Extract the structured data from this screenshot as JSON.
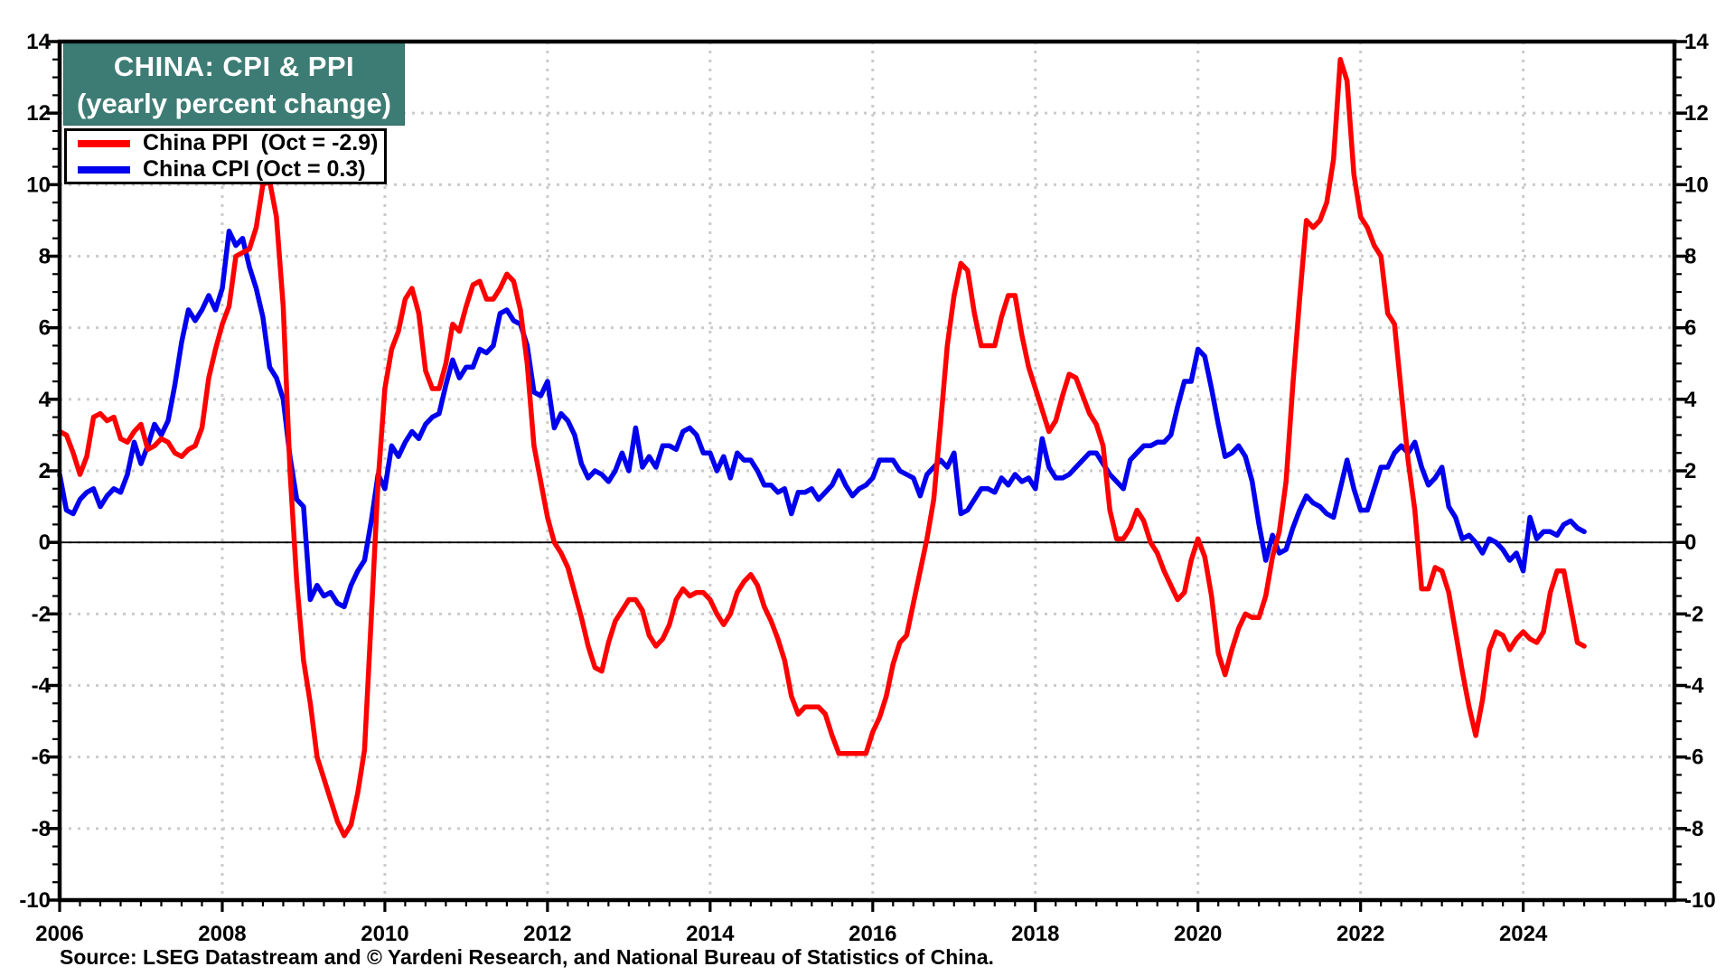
{
  "title": {
    "line1": "CHINA: CPI & PPI",
    "line2": "(yearly percent change)"
  },
  "legend": [
    {
      "label": "China PPI  (Oct = -2.9)",
      "color": "#FF0000"
    },
    {
      "label": "China CPI (Oct = 0.3)",
      "color": "#0000EE"
    }
  ],
  "source": "Source: LSEG Datastream and © Yardeni Research, and National Bureau of Statistics of China.",
  "colors": {
    "title_bg": "#3D7C74",
    "title_text": "#FFFFFF",
    "ppi_line": "#FF0000",
    "cpi_line": "#0000EE",
    "gridline": "#CBCBCB",
    "axis": "#000000"
  },
  "chart_data": {
    "type": "line",
    "title": "CHINA: CPI & PPI (yearly percent change)",
    "xlabel": "",
    "ylabel": "yearly percent change",
    "x_monthly_from": "2006-01",
    "x_monthly_to": "2024-10",
    "xlim": [
      2006,
      2025.86
    ],
    "ylim": [
      -10,
      14
    ],
    "xticks": [
      2006,
      2008,
      2010,
      2012,
      2014,
      2016,
      2018,
      2020,
      2022,
      2024
    ],
    "yticks": [
      14,
      12,
      10,
      8,
      6,
      4,
      2,
      0,
      -2,
      -4,
      -6,
      -8,
      -10
    ],
    "y_minor_step": 0.5,
    "x_minor_step": 0.25,
    "grid": "dotted",
    "legend_position": "top-left",
    "series": [
      {
        "name": "China PPI",
        "latest_label": "Oct = -2.9",
        "color": "#FF0000",
        "values": [
          3.1,
          3.0,
          2.5,
          1.9,
          2.4,
          3.5,
          3.6,
          3.4,
          3.5,
          2.9,
          2.8,
          3.1,
          3.3,
          2.6,
          2.7,
          2.9,
          2.8,
          2.5,
          2.4,
          2.6,
          2.7,
          3.2,
          4.6,
          5.4,
          6.1,
          6.6,
          8.0,
          8.1,
          8.2,
          8.8,
          10.0,
          10.1,
          9.1,
          6.6,
          2.0,
          -1.1,
          -3.3,
          -4.5,
          -6.0,
          -6.6,
          -7.2,
          -7.8,
          -8.2,
          -7.9,
          -7.0,
          -5.8,
          -2.1,
          1.7,
          4.3,
          5.4,
          5.9,
          6.8,
          7.1,
          6.4,
          4.8,
          4.3,
          4.3,
          5.0,
          6.1,
          5.9,
          6.6,
          7.2,
          7.3,
          6.8,
          6.8,
          7.1,
          7.5,
          7.3,
          6.5,
          5.0,
          2.7,
          1.7,
          0.7,
          0.0,
          -0.3,
          -0.7,
          -1.4,
          -2.1,
          -2.9,
          -3.5,
          -3.6,
          -2.8,
          -2.2,
          -1.9,
          -1.6,
          -1.6,
          -1.9,
          -2.6,
          -2.9,
          -2.7,
          -2.3,
          -1.6,
          -1.3,
          -1.5,
          -1.4,
          -1.4,
          -1.6,
          -2.0,
          -2.3,
          -2.0,
          -1.4,
          -1.1,
          -0.9,
          -1.2,
          -1.8,
          -2.2,
          -2.7,
          -3.3,
          -4.3,
          -4.8,
          -4.6,
          -4.6,
          -4.6,
          -4.8,
          -5.4,
          -5.9,
          -5.9,
          -5.9,
          -5.9,
          -5.9,
          -5.3,
          -4.9,
          -4.3,
          -3.4,
          -2.8,
          -2.6,
          -1.7,
          -0.8,
          0.1,
          1.2,
          3.3,
          5.5,
          6.9,
          7.8,
          7.6,
          6.4,
          5.5,
          5.5,
          5.5,
          6.3,
          6.9,
          6.9,
          5.8,
          4.9,
          4.3,
          3.7,
          3.1,
          3.4,
          4.1,
          4.7,
          4.6,
          4.1,
          3.6,
          3.3,
          2.7,
          0.9,
          0.1,
          0.1,
          0.4,
          0.9,
          0.6,
          0.0,
          -0.3,
          -0.8,
          -1.2,
          -1.6,
          -1.4,
          -0.5,
          0.1,
          -0.4,
          -1.5,
          -3.1,
          -3.7,
          -3.0,
          -2.4,
          -2.0,
          -2.1,
          -2.1,
          -1.5,
          -0.4,
          0.3,
          1.7,
          4.4,
          6.8,
          9.0,
          8.8,
          9.0,
          9.5,
          10.7,
          13.5,
          12.9,
          10.3,
          9.1,
          8.8,
          8.3,
          8.0,
          6.4,
          6.1,
          4.2,
          2.3,
          0.9,
          -1.3,
          -1.3,
          -0.7,
          -0.8,
          -1.4,
          -2.5,
          -3.6,
          -4.6,
          -5.4,
          -4.4,
          -3.0,
          -2.5,
          -2.6,
          -3.0,
          -2.7,
          -2.5,
          -2.7,
          -2.8,
          -2.5,
          -1.4,
          -0.8,
          -0.8,
          -1.8,
          -2.8,
          -2.9
        ]
      },
      {
        "name": "China CPI",
        "latest_label": "Oct = 0.3",
        "color": "#0000EE",
        "values": [
          1.9,
          0.9,
          0.8,
          1.2,
          1.4,
          1.5,
          1.0,
          1.3,
          1.5,
          1.4,
          1.9,
          2.8,
          2.2,
          2.7,
          3.3,
          3.0,
          3.4,
          4.4,
          5.6,
          6.5,
          6.2,
          6.5,
          6.9,
          6.5,
          7.1,
          8.7,
          8.3,
          8.5,
          7.7,
          7.1,
          6.3,
          4.9,
          4.6,
          4.0,
          2.4,
          1.2,
          1.0,
          -1.6,
          -1.2,
          -1.5,
          -1.4,
          -1.7,
          -1.8,
          -1.2,
          -0.8,
          -0.5,
          0.6,
          1.9,
          1.5,
          2.7,
          2.4,
          2.8,
          3.1,
          2.9,
          3.3,
          3.5,
          3.6,
          4.4,
          5.1,
          4.6,
          4.9,
          4.9,
          5.4,
          5.3,
          5.5,
          6.4,
          6.5,
          6.2,
          6.1,
          5.5,
          4.2,
          4.1,
          4.5,
          3.2,
          3.6,
          3.4,
          3.0,
          2.2,
          1.8,
          2.0,
          1.9,
          1.7,
          2.0,
          2.5,
          2.0,
          3.2,
          2.1,
          2.4,
          2.1,
          2.7,
          2.7,
          2.6,
          3.1,
          3.2,
          3.0,
          2.5,
          2.5,
          2.0,
          2.4,
          1.8,
          2.5,
          2.3,
          2.3,
          2.0,
          1.6,
          1.6,
          1.4,
          1.5,
          0.8,
          1.4,
          1.4,
          1.5,
          1.2,
          1.4,
          1.6,
          2.0,
          1.6,
          1.3,
          1.5,
          1.6,
          1.8,
          2.3,
          2.3,
          2.3,
          2.0,
          1.9,
          1.8,
          1.3,
          1.9,
          2.1,
          2.3,
          2.1,
          2.5,
          0.8,
          0.9,
          1.2,
          1.5,
          1.5,
          1.4,
          1.8,
          1.6,
          1.9,
          1.7,
          1.8,
          1.5,
          2.9,
          2.1,
          1.8,
          1.8,
          1.9,
          2.1,
          2.3,
          2.5,
          2.5,
          2.2,
          1.9,
          1.7,
          1.5,
          2.3,
          2.5,
          2.7,
          2.7,
          2.8,
          2.8,
          3.0,
          3.8,
          4.5,
          4.5,
          5.4,
          5.2,
          4.3,
          3.3,
          2.4,
          2.5,
          2.7,
          2.4,
          1.7,
          0.5,
          -0.5,
          0.2,
          -0.3,
          -0.2,
          0.4,
          0.9,
          1.3,
          1.1,
          1.0,
          0.8,
          0.7,
          1.5,
          2.3,
          1.5,
          0.9,
          0.9,
          1.5,
          2.1,
          2.1,
          2.5,
          2.7,
          2.5,
          2.8,
          2.1,
          1.6,
          1.8,
          2.1,
          1.0,
          0.7,
          0.1,
          0.2,
          0.0,
          -0.3,
          0.1,
          0.0,
          -0.2,
          -0.5,
          -0.3,
          -0.8,
          0.7,
          0.1,
          0.3,
          0.3,
          0.2,
          0.5,
          0.6,
          0.4,
          0.3
        ]
      }
    ]
  }
}
